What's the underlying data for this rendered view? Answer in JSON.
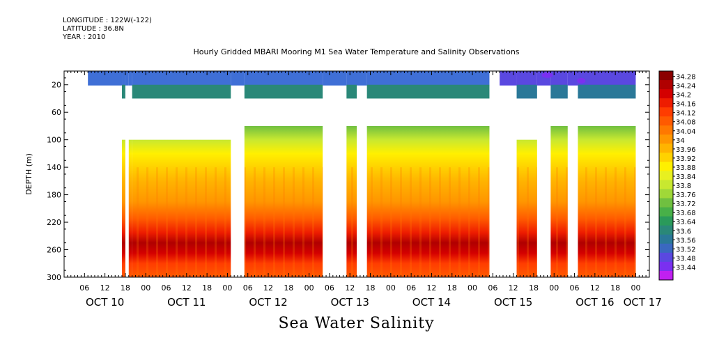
{
  "header": {
    "longitude": "LONGITUDE : 122W(-122)",
    "latitude": "LATITUDE : 36.8N",
    "year": "YEAR : 2010"
  },
  "chart_data": {
    "type": "heatmap",
    "title": "Hourly Gridded MBARI Mooring M1 Sea Water Temperature and Salinity Observations",
    "xlabel": "Sea Water Salinity",
    "ylabel": "DEPTH (m)",
    "ylim": [
      300,
      0
    ],
    "y_ticks": [
      20,
      60,
      100,
      140,
      180,
      220,
      260,
      300
    ],
    "x_ticks": [
      {
        "h": 6,
        "label": "06"
      },
      {
        "h": 12,
        "label": "12"
      },
      {
        "h": 18,
        "label": "18"
      },
      {
        "h": 24,
        "label": "00"
      },
      {
        "h": 30,
        "label": "06"
      },
      {
        "h": 36,
        "label": "12"
      },
      {
        "h": 42,
        "label": "18"
      },
      {
        "h": 48,
        "label": "00"
      },
      {
        "h": 54,
        "label": "06"
      },
      {
        "h": 60,
        "label": "12"
      },
      {
        "h": 66,
        "label": "18"
      },
      {
        "h": 72,
        "label": "00"
      },
      {
        "h": 78,
        "label": "06"
      },
      {
        "h": 84,
        "label": "12"
      },
      {
        "h": 90,
        "label": "18"
      },
      {
        "h": 96,
        "label": "00"
      },
      {
        "h": 102,
        "label": "06"
      },
      {
        "h": 108,
        "label": "12"
      },
      {
        "h": 114,
        "label": "18"
      },
      {
        "h": 120,
        "label": "00"
      },
      {
        "h": 126,
        "label": "06"
      },
      {
        "h": 132,
        "label": "12"
      },
      {
        "h": 138,
        "label": "18"
      },
      {
        "h": 144,
        "label": "00"
      },
      {
        "h": 150,
        "label": "06"
      },
      {
        "h": 156,
        "label": "12"
      },
      {
        "h": 162,
        "label": "18"
      },
      {
        "h": 168,
        "label": "00"
      }
    ],
    "date_labels": [
      {
        "h": 12,
        "label": "OCT 10"
      },
      {
        "h": 36,
        "label": "OCT 11"
      },
      {
        "h": 60,
        "label": "OCT 12"
      },
      {
        "h": 84,
        "label": "OCT 13"
      },
      {
        "h": 108,
        "label": "OCT 14"
      },
      {
        "h": 132,
        "label": "OCT 15"
      },
      {
        "h": 156,
        "label": "OCT 16"
      },
      {
        "h": 170,
        "label": "OCT 17"
      }
    ],
    "colorbar": {
      "levels": [
        "34.28",
        "34.24",
        "34.2",
        "34.16",
        "34.12",
        "34.08",
        "34.04",
        "34",
        "33.96",
        "33.92",
        "33.88",
        "33.84",
        "33.8",
        "33.76",
        "33.72",
        "33.68",
        "33.64",
        "33.6",
        "33.56",
        "33.52",
        "33.48",
        "33.44"
      ],
      "colors": [
        "#8b0000",
        "#b00000",
        "#d40000",
        "#ee1c00",
        "#ff3c00",
        "#ff5a00",
        "#ff7800",
        "#ff9600",
        "#ffb400",
        "#ffd200",
        "#fff000",
        "#e8f020",
        "#c8e830",
        "#a0d838",
        "#70c040",
        "#48b048",
        "#2a9a5a",
        "#2a8878",
        "#2a7898",
        "#3a68c0",
        "#5a48e0",
        "#7a30f0",
        "#c020f0"
      ]
    },
    "data_segments": [
      {
        "start": 7,
        "end": 17,
        "surface": "#3f6fd6",
        "near20": null,
        "profile": false
      },
      {
        "start": 17,
        "end": 18,
        "surface": "#3f6fd6",
        "near20": "#2a8878",
        "profile": true,
        "top": 100
      },
      {
        "start": 18,
        "end": 19,
        "surface": "#3f6fd6",
        "near20": null,
        "profile": false
      },
      {
        "start": 19,
        "end": 20,
        "surface": "#3f6fd6",
        "near20": null,
        "profile": true,
        "top": 100
      },
      {
        "start": 20,
        "end": 49,
        "surface": "#3f6fd6",
        "near20": "#2a8878",
        "profile": true,
        "top": 100
      },
      {
        "start": 49,
        "end": 53,
        "surface": "#3f6fd6",
        "near20": null,
        "profile": false
      },
      {
        "start": 53,
        "end": 76,
        "surface": "#3f6fd6",
        "near20": "#2a8878",
        "profile": true,
        "top": 80
      },
      {
        "start": 76,
        "end": 83,
        "surface": "#3f6fd6",
        "near20": null,
        "profile": false
      },
      {
        "start": 83,
        "end": 86,
        "surface": "#3f6fd6",
        "near20": "#2a8878",
        "profile": true,
        "top": 80
      },
      {
        "start": 86,
        "end": 89,
        "surface": "#3f6fd6",
        "near20": null,
        "profile": false
      },
      {
        "start": 89,
        "end": 125,
        "surface": "#3f6fd6",
        "near20": "#2a8878",
        "profile": true,
        "top": 80
      },
      {
        "start": 128,
        "end": 133,
        "surface": "#5a48e0",
        "near20": null,
        "profile": false
      },
      {
        "start": 133,
        "end": 139,
        "surface": "#5a48e0",
        "near20": "#2a7898",
        "profile": true,
        "top": 100
      },
      {
        "start": 139,
        "end": 143,
        "surface": "#5a48e0",
        "near20": null,
        "profile": false
      },
      {
        "start": 143,
        "end": 148,
        "surface": "#5a48e0",
        "near20": "#2a7898",
        "profile": true,
        "top": 80
      },
      {
        "start": 148,
        "end": 151,
        "surface": "#5a48e0",
        "near20": null,
        "profile": false
      },
      {
        "start": 151,
        "end": 168,
        "surface": "#5a48e0",
        "near20": "#2a7898",
        "profile": true,
        "top": 80
      }
    ],
    "profile": [
      {
        "depth": 80,
        "color": "#70c040"
      },
      {
        "depth": 100,
        "color": "#c8e830"
      },
      {
        "depth": 120,
        "color": "#fff000"
      },
      {
        "depth": 140,
        "color": "#ffd200"
      },
      {
        "depth": 160,
        "color": "#ffb400"
      },
      {
        "depth": 190,
        "color": "#ff9600"
      },
      {
        "depth": 215,
        "color": "#ff5a00"
      },
      {
        "depth": 235,
        "color": "#ee1c00"
      },
      {
        "depth": 250,
        "color": "#b00000"
      },
      {
        "depth": 265,
        "color": "#d40000"
      },
      {
        "depth": 280,
        "color": "#ff3c00"
      },
      {
        "depth": 300,
        "color": "#ff5a00"
      }
    ]
  }
}
